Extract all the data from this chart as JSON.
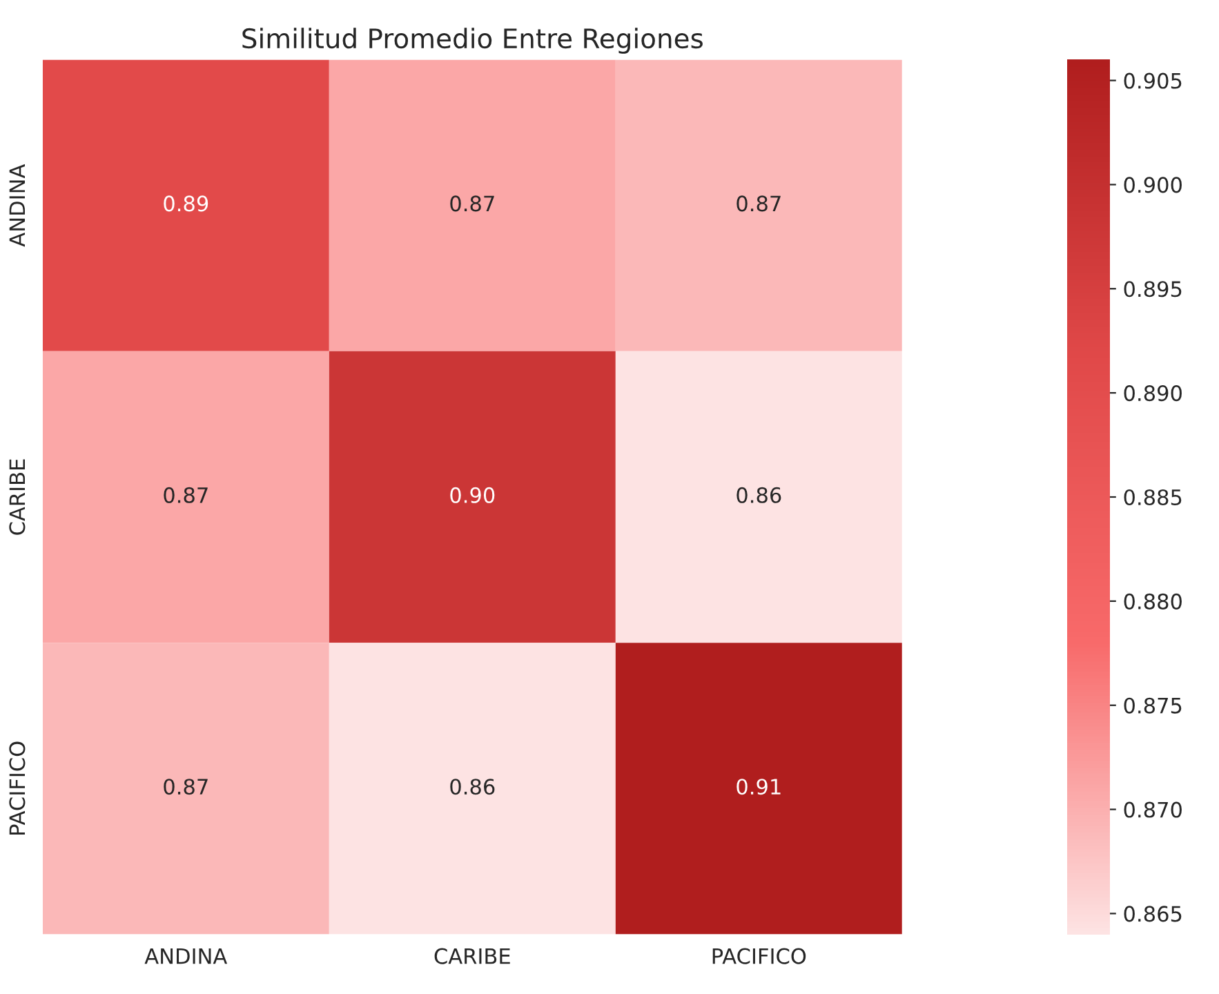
{
  "chart_data": {
    "type": "heatmap",
    "title": "Similitud Promedio Entre Regiones",
    "categories": [
      "ANDINA",
      "CARIBE",
      "PACIFICO"
    ],
    "y_categories": [
      "ANDINA",
      "CARIBE",
      "PACIFICO"
    ],
    "cells": [
      [
        0.891,
        0.871,
        0.869
      ],
      [
        0.871,
        0.898,
        0.864
      ],
      [
        0.869,
        0.864,
        0.906
      ]
    ],
    "cell_labels": [
      [
        "0.89",
        "0.87",
        "0.87"
      ],
      [
        "0.87",
        "0.90",
        "0.86"
      ],
      [
        "0.87",
        "0.86",
        "0.91"
      ]
    ],
    "clim": [
      0.864,
      0.906
    ],
    "cticks": [
      {
        "value": 0.865,
        "label": "0.865"
      },
      {
        "value": 0.87,
        "label": "0.870"
      },
      {
        "value": 0.875,
        "label": "0.875"
      },
      {
        "value": 0.88,
        "label": "0.880"
      },
      {
        "value": 0.885,
        "label": "0.885"
      },
      {
        "value": 0.89,
        "label": "0.890"
      },
      {
        "value": 0.895,
        "label": "0.895"
      },
      {
        "value": 0.9,
        "label": "0.900"
      },
      {
        "value": 0.905,
        "label": "0.905"
      }
    ]
  }
}
